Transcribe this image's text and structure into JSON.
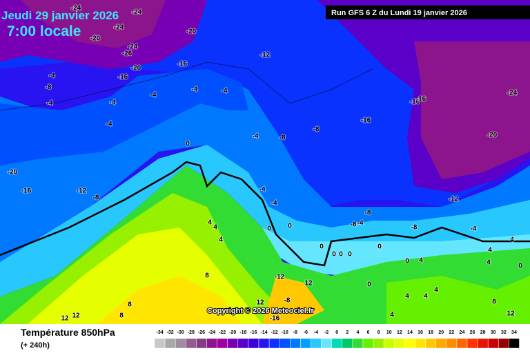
{
  "header": {
    "date": "Jeudi 29 janvier 2026",
    "time": "7:00 locale",
    "run": "Run GFS 6 Z du Lundi 19 janvier 2026"
  },
  "map": {
    "contour_labels": [
      "-24",
      "-24",
      "-24",
      "-20",
      "-20",
      "-24",
      "-26",
      "-12",
      "-16",
      "-20",
      "-4",
      "-16",
      "-8",
      "-4",
      "-4",
      "-4",
      "-4",
      "-4",
      "-4",
      "-16",
      "-16",
      "-24",
      "-16",
      "-8",
      "-20",
      "-4",
      "-8",
      "0",
      "-20",
      "-16",
      "-12",
      "-8",
      "-4",
      "-4",
      "-12",
      "-8",
      "-8",
      "-4",
      "0",
      "-8",
      "-4",
      "4",
      "4",
      "4",
      "0",
      "0",
      "0",
      "0",
      "0",
      "0",
      "0",
      "4",
      "4",
      "4",
      "0",
      "4",
      "8",
      "-12",
      "12",
      "0",
      "4",
      "4",
      "4",
      "8",
      "12",
      "-8",
      "-16",
      "8",
      "8",
      "12",
      "12",
      "12",
      "4"
    ]
  },
  "copyright": "Copyright © 2026 Meteociel.fr",
  "legend": {
    "title": "Température 850hPa",
    "subtitle": "(+ 240h)",
    "ticks": [
      -34,
      -32,
      -30,
      -28,
      -26,
      -24,
      -22,
      -20,
      -18,
      -16,
      -14,
      -12,
      -10,
      -8,
      -6,
      -4,
      -2,
      0,
      2,
      4,
      6,
      8,
      10,
      12,
      14,
      16,
      18,
      20,
      22,
      24,
      26,
      28,
      30,
      32,
      34
    ],
    "colors": [
      "#c8c8c8",
      "#a8a8a8",
      "#a08ca0",
      "#965a8c",
      "#823c82",
      "#8c148c",
      "#a000a0",
      "#7800b4",
      "#5a00c8",
      "#3c00dc",
      "#2814f0",
      "#0a32ff",
      "#0050ff",
      "#0078ff",
      "#00a0ff",
      "#28c8ff",
      "#64e6ff",
      "#00dcb4",
      "#00c864",
      "#32dc32",
      "#64f000",
      "#96f000",
      "#c8ff00",
      "#e6ff00",
      "#ffff00",
      "#ffe600",
      "#ffc800",
      "#ffaa00",
      "#ff8c00",
      "#ff6400",
      "#ff3200",
      "#e61400",
      "#c80000",
      "#960000",
      "#000000"
    ]
  }
}
